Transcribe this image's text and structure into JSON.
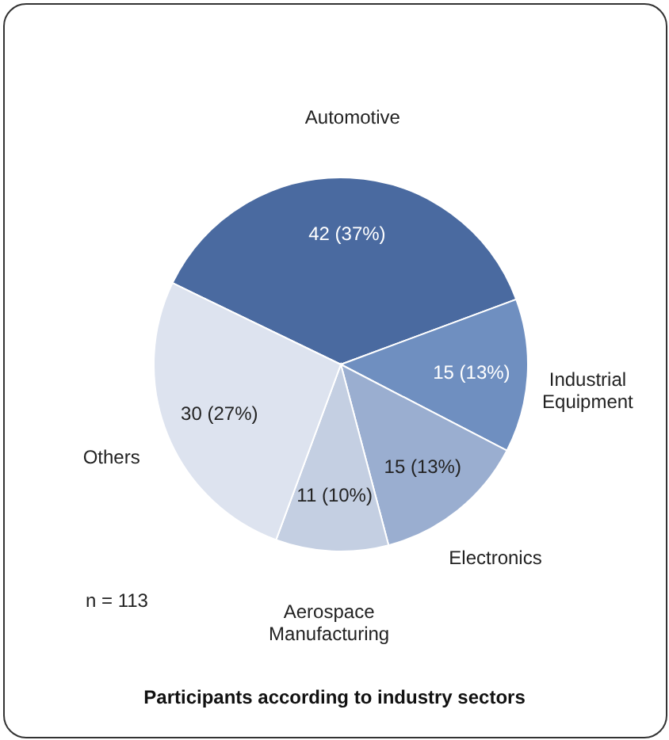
{
  "chart_data": {
    "type": "pie",
    "title": "Participants according to industry sectors",
    "categories": [
      "Automotive",
      "Industrial\nEquipment",
      "Electronics",
      "Aerospace\nManufacturing",
      "Others"
    ],
    "values": [
      42,
      15,
      15,
      11,
      30
    ],
    "value_labels": [
      "42 (37%)",
      "15 (13%)",
      "15 (13%)",
      "11 (10%)",
      "30 (27%)"
    ],
    "colors": [
      "#4a6aa0",
      "#6f8fc0",
      "#9aaed0",
      "#c4cfe2",
      "#dde3ef"
    ],
    "annotations": [
      "n = 113"
    ],
    "legend": false
  }
}
